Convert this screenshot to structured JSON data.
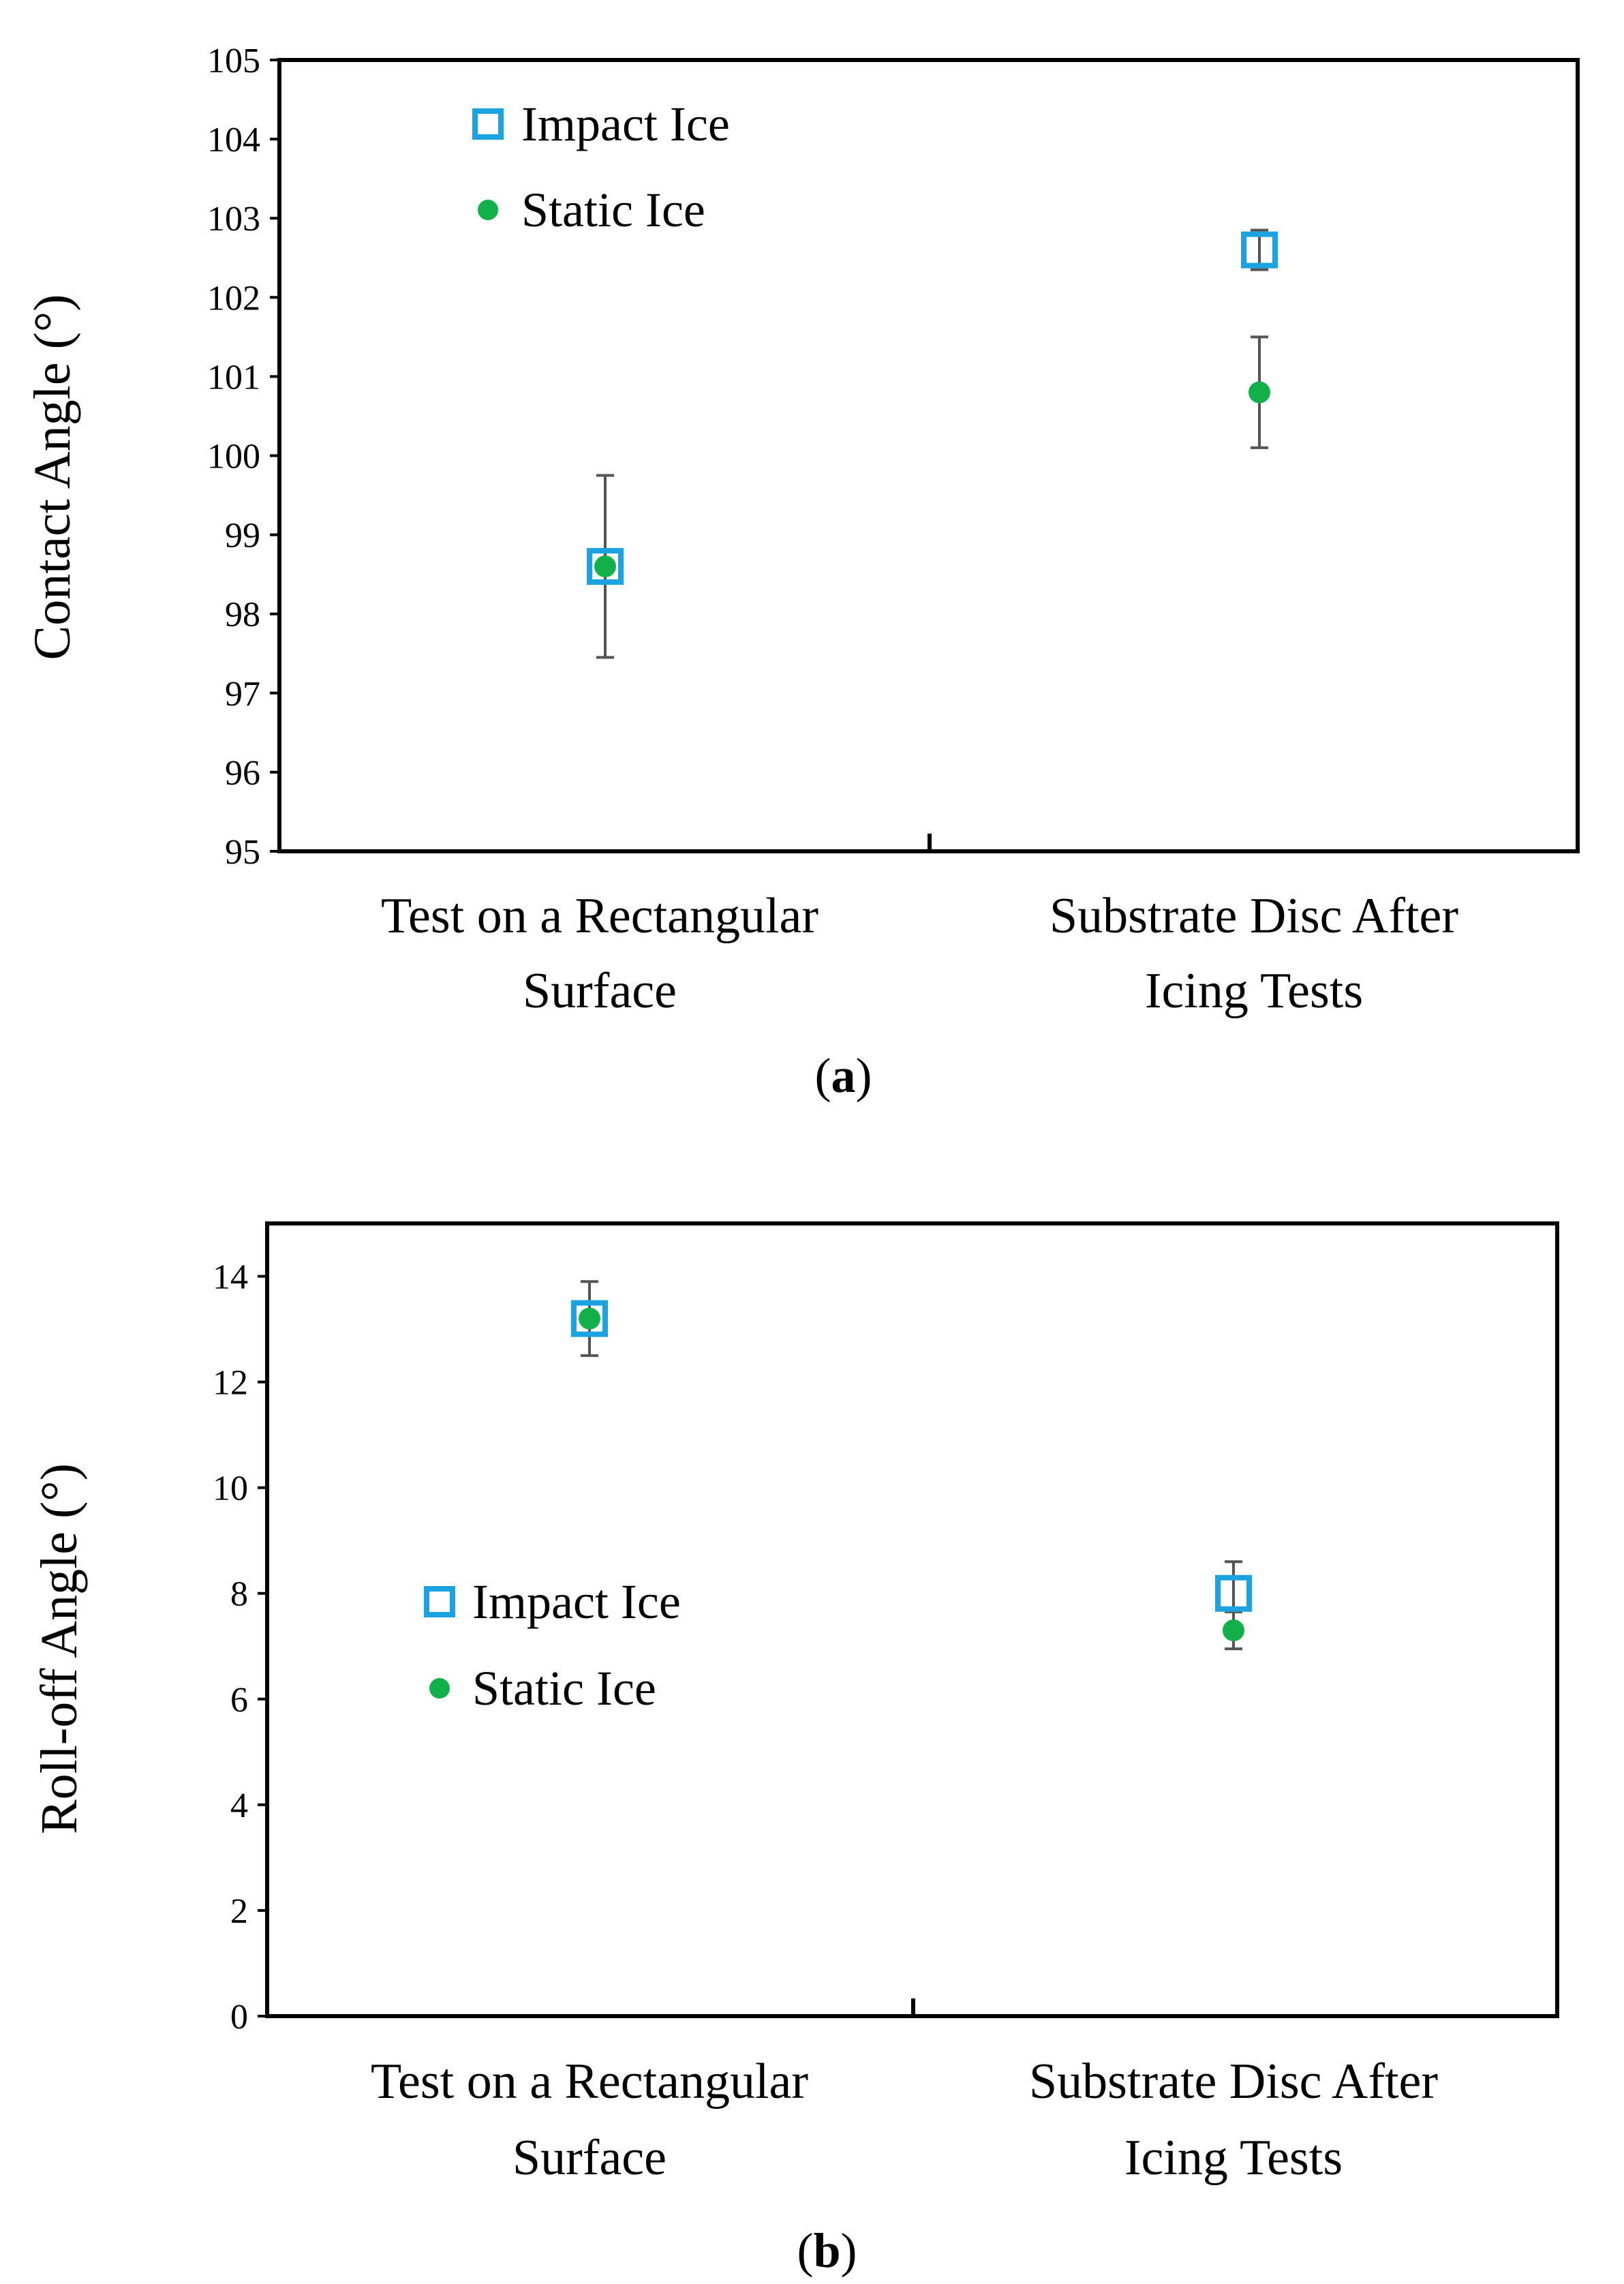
{
  "chart_data": [
    {
      "type": "scatter",
      "panel_label": "a",
      "ylabel": "Contact Angle (°)",
      "ylim": [
        95,
        105
      ],
      "yticks": [
        95,
        96,
        97,
        98,
        99,
        100,
        101,
        102,
        103,
        104,
        105
      ],
      "categories": [
        "Test on a Rectangular Surface",
        "Substrate Disc After Icing Tests"
      ],
      "category_lines": [
        [
          "Test on a Rectangular",
          "Surface"
        ],
        [
          "Substrate Disc After",
          "Icing Tests"
        ]
      ],
      "legend_position": "top-left",
      "series": [
        {
          "name": "Impact Ice",
          "marker": "square",
          "color": "#1aa3e0",
          "values": [
            98.6,
            102.6
          ],
          "errors": [
            1.15,
            0.25
          ]
        },
        {
          "name": "Static Ice",
          "marker": "circle",
          "color": "#12b04a",
          "values": [
            98.6,
            100.8
          ],
          "errors": [
            1.15,
            0.7
          ]
        }
      ]
    },
    {
      "type": "scatter",
      "panel_label": "b",
      "ylabel": "Roll-off Angle (°)",
      "ylim": [
        0,
        15
      ],
      "yticks": [
        0,
        2,
        4,
        6,
        8,
        10,
        12,
        14
      ],
      "categories": [
        "Test on a Rectangular Surface",
        "Substrate Disc After Icing Tests"
      ],
      "category_lines": [
        [
          "Test on a Rectangular",
          "Surface"
        ],
        [
          "Substrate Disc After",
          "Icing Tests"
        ]
      ],
      "legend_position": "middle-left",
      "series": [
        {
          "name": "Impact Ice",
          "marker": "square",
          "color": "#1aa3e0",
          "values": [
            13.2,
            8.0
          ],
          "errors": [
            0.7,
            0.6
          ]
        },
        {
          "name": "Static Ice",
          "marker": "circle",
          "color": "#12b04a",
          "values": [
            13.2,
            7.3
          ],
          "errors": [
            0.7,
            0.35
          ]
        }
      ]
    }
  ]
}
